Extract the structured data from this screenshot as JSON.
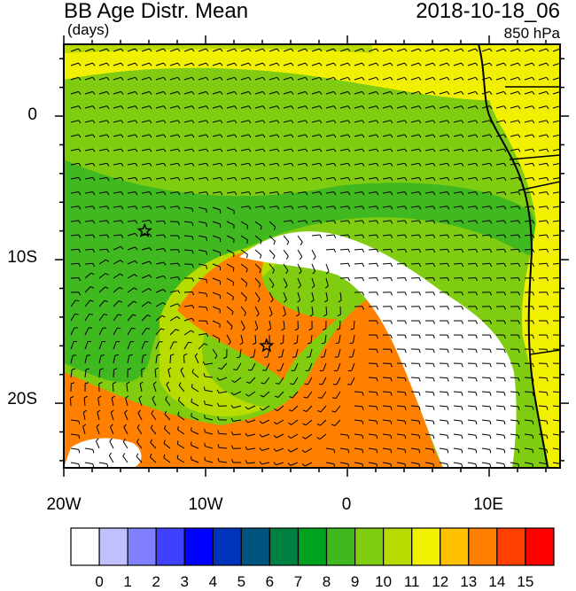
{
  "title": {
    "variable": "BB Age Distr. Mean",
    "units": "(days)",
    "datetime": "2018-10-18_06",
    "level": "850 hPa"
  },
  "axes": {
    "lat_ticks": [
      {
        "value": 0,
        "label": "0"
      },
      {
        "value": -10,
        "label": "10S"
      },
      {
        "value": -20,
        "label": "20S"
      }
    ],
    "lon_ticks": [
      {
        "value": -20,
        "label": "20W"
      },
      {
        "value": -10,
        "label": "10W"
      },
      {
        "value": 0,
        "label": "0"
      },
      {
        "value": 10,
        "label": "10E"
      }
    ],
    "lon_range": [
      -20,
      15
    ],
    "lat_range": [
      -24.5,
      5
    ]
  },
  "colorbar": {
    "labels": [
      "0",
      "1",
      "2",
      "3",
      "4",
      "5",
      "6",
      "7",
      "8",
      "9",
      "10",
      "11",
      "12",
      "13",
      "14",
      "15"
    ],
    "colors": [
      "#ffffff",
      "#c0c0ff",
      "#8080ff",
      "#4040ff",
      "#0000ff",
      "#0033bb",
      "#005580",
      "#008040",
      "#00a020",
      "#40b820",
      "#80cc10",
      "#b8dc00",
      "#f0f000",
      "#ffc000",
      "#ff8000",
      "#ff4000",
      "#ff0000"
    ]
  },
  "map": {
    "fields": {
      "green_dark": "#40b820",
      "green": "#80cc10",
      "green_mid": "#b8dc00",
      "yellow": "#f0f000",
      "amber": "#ffc000",
      "orange": "#ff8000",
      "white": "#ffffff"
    },
    "markers": [
      {
        "name": "star",
        "lon": -14.3,
        "lat": -8.0
      },
      {
        "name": "star",
        "lon": -5.7,
        "lat": -16.0
      }
    ]
  }
}
